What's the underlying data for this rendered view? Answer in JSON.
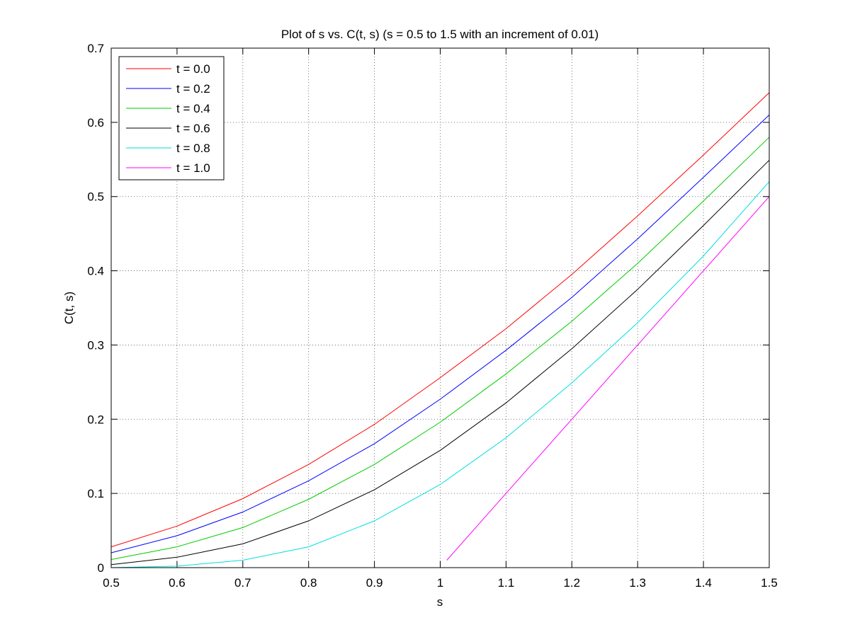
{
  "chart_data": {
    "type": "line",
    "title": "Plot of s vs. C(t, s) (s = 0.5 to 1.5 with an increment of 0.01)",
    "xlabel": "s",
    "ylabel": "C(t, s)",
    "xlim": [
      0.5,
      1.5
    ],
    "ylim": [
      0,
      0.7
    ],
    "xticks": [
      "0.5",
      "0.6",
      "0.7",
      "0.8",
      "0.9",
      "1",
      "1.1",
      "1.2",
      "1.3",
      "1.4",
      "1.5"
    ],
    "yticks": [
      "0",
      "0.1",
      "0.2",
      "0.3",
      "0.4",
      "0.5",
      "0.6",
      "0.7"
    ],
    "grid": true,
    "legend_position": "top-left",
    "series": [
      {
        "name": "t = 0.0",
        "color": "#ff0000",
        "x": [
          0.5,
          0.6,
          0.7,
          0.8,
          0.9,
          1.0,
          1.1,
          1.2,
          1.3,
          1.4,
          1.5
        ],
        "y": [
          0.028,
          0.056,
          0.093,
          0.139,
          0.193,
          0.256,
          0.322,
          0.395,
          0.474,
          0.556,
          0.64
        ]
      },
      {
        "name": "t = 0.2",
        "color": "#0000ff",
        "x": [
          0.5,
          0.6,
          0.7,
          0.8,
          0.9,
          1.0,
          1.1,
          1.2,
          1.3,
          1.4,
          1.5
        ],
        "y": [
          0.02,
          0.043,
          0.075,
          0.117,
          0.167,
          0.227,
          0.293,
          0.364,
          0.443,
          0.526,
          0.61
        ]
      },
      {
        "name": "t = 0.4",
        "color": "#00cc00",
        "x": [
          0.5,
          0.6,
          0.7,
          0.8,
          0.9,
          1.0,
          1.1,
          1.2,
          1.3,
          1.4,
          1.5
        ],
        "y": [
          0.011,
          0.028,
          0.054,
          0.092,
          0.139,
          0.196,
          0.261,
          0.332,
          0.41,
          0.494,
          0.58
        ]
      },
      {
        "name": "t = 0.6",
        "color": "#000000",
        "x": [
          0.5,
          0.6,
          0.7,
          0.8,
          0.9,
          1.0,
          1.1,
          1.2,
          1.3,
          1.4,
          1.5
        ],
        "y": [
          0.004,
          0.014,
          0.032,
          0.063,
          0.105,
          0.158,
          0.222,
          0.295,
          0.375,
          0.461,
          0.549
        ]
      },
      {
        "name": "t = 0.8",
        "color": "#00dddd",
        "x": [
          0.5,
          0.6,
          0.7,
          0.8,
          0.9,
          1.0,
          1.1,
          1.2,
          1.3,
          1.4,
          1.5
        ],
        "y": [
          0.0,
          0.002,
          0.01,
          0.028,
          0.063,
          0.112,
          0.175,
          0.249,
          0.33,
          0.42,
          0.52
        ]
      },
      {
        "name": "t = 1.0",
        "color": "#ff00ff",
        "x": [
          1.01,
          1.1,
          1.2,
          1.3,
          1.4,
          1.5
        ],
        "y": [
          0.01,
          0.1,
          0.2,
          0.3,
          0.4,
          0.5
        ]
      }
    ]
  }
}
